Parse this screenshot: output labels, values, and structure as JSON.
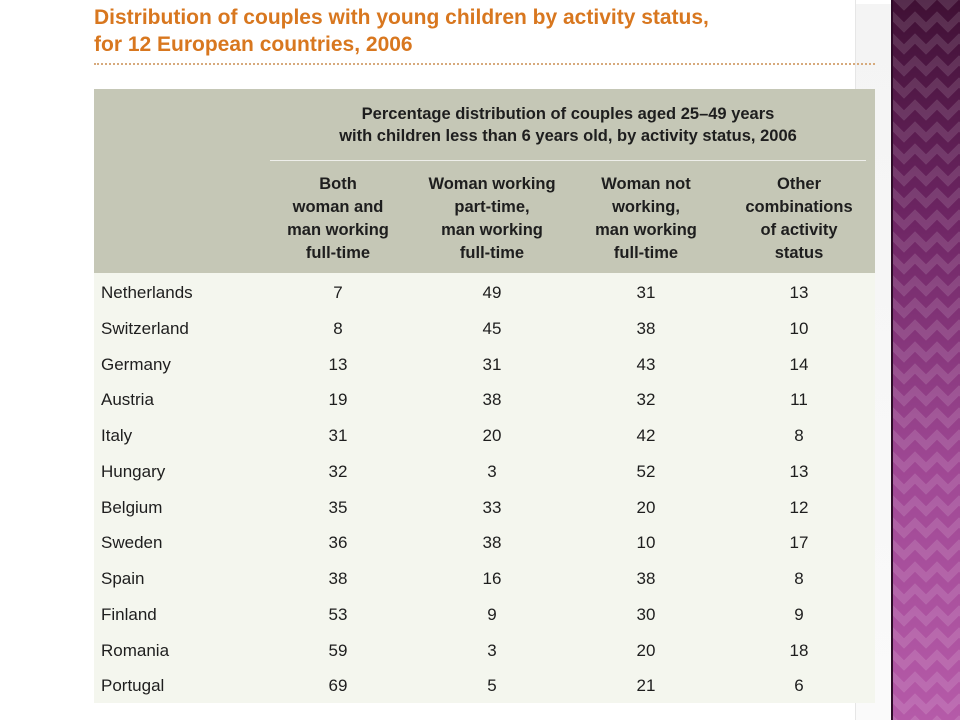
{
  "title": {
    "line1": "Distribution of couples with young children by activity status,",
    "line2": "for 12 European countries, 2006"
  },
  "table": {
    "super_header": {
      "line1": "Percentage distribution of couples aged 25–49 years",
      "line2": "with children less than 6 years old, by activity status, 2006"
    },
    "columns": [
      {
        "lines": [
          "Both",
          "woman and",
          "man working",
          "full-time"
        ]
      },
      {
        "lines": [
          "Woman working",
          "part-time,",
          "man working",
          "full-time"
        ]
      },
      {
        "lines": [
          "Woman not",
          "working,",
          "man working",
          "full-time"
        ]
      },
      {
        "lines": [
          "Other",
          "combinations",
          "of activity",
          "status"
        ]
      }
    ],
    "rows": [
      {
        "country": "Netherlands",
        "values": [
          "7",
          "49",
          "31",
          "13"
        ]
      },
      {
        "country": "Switzerland",
        "values": [
          "8",
          "45",
          "38",
          "10"
        ]
      },
      {
        "country": "Germany",
        "values": [
          "13",
          "31",
          "43",
          "14"
        ]
      },
      {
        "country": "Austria",
        "values": [
          "19",
          "38",
          "32",
          "11"
        ]
      },
      {
        "country": "Italy",
        "values": [
          "31",
          "20",
          "42",
          "8"
        ]
      },
      {
        "country": "Hungary",
        "values": [
          "32",
          "3",
          "52",
          "13"
        ]
      },
      {
        "country": "Belgium",
        "values": [
          "35",
          "33",
          "20",
          "12"
        ]
      },
      {
        "country": "Sweden",
        "values": [
          "36",
          "38",
          "10",
          "17"
        ]
      },
      {
        "country": "Spain",
        "values": [
          "38",
          "16",
          "38",
          "8"
        ]
      },
      {
        "country": "Finland",
        "values": [
          "53",
          "9",
          "30",
          "9"
        ]
      },
      {
        "country": "Romania",
        "values": [
          "59",
          "3",
          "20",
          "18"
        ]
      },
      {
        "country": "Portugal",
        "values": [
          "69",
          "5",
          "21",
          "6"
        ]
      }
    ]
  },
  "colors": {
    "title": "#d8771f",
    "header_background": "#c5c7b6",
    "body_background": "#f4f6ee",
    "accent_band": "#8a3f86"
  }
}
